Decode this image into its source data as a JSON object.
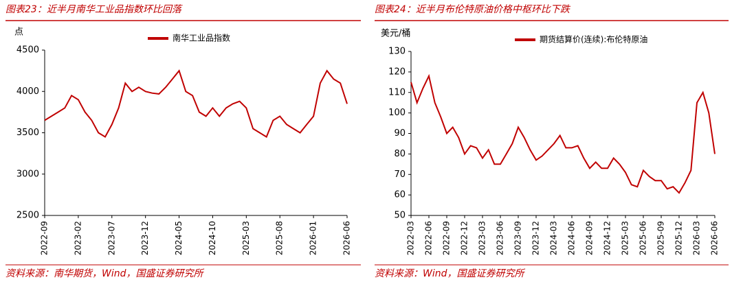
{
  "chart_data": [
    {
      "type": "line",
      "title": "图表23：近半月南华工业品指数环比回落",
      "y_unit": "点",
      "source": "资料来源：南华期货，Wind，国盛证券研究所",
      "x": [
        "2022-09",
        "2022-10",
        "2022-11",
        "2022-12",
        "2023-01",
        "2023-02",
        "2023-03",
        "2023-04",
        "2023-05",
        "2023-06",
        "2023-07",
        "2023-08",
        "2023-09",
        "2023-10",
        "2023-11",
        "2023-12",
        "2024-01",
        "2024-02",
        "2024-03",
        "2024-04",
        "2024-05",
        "2024-06",
        "2024-07",
        "2024-08",
        "2024-09",
        "2024-10",
        "2024-11",
        "2024-12",
        "2025-01",
        "2025-02",
        "2025-03",
        "2025-04",
        "2025-05",
        "2025-06",
        "2025-07",
        "2025-08",
        "2025-09",
        "2025-10",
        "2025-11",
        "2025-12",
        "2026-01",
        "2026-02",
        "2026-03",
        "2026-04",
        "2026-05",
        "2026-06"
      ],
      "xticks": [
        "2022-09",
        "2023-02",
        "2023-07",
        "2023-12",
        "2024-05",
        "2024-10",
        "2025-03",
        "2025-08",
        "2026-01",
        "2026-06"
      ],
      "series": [
        {
          "name": "南华工业品指数",
          "color": "#c00000",
          "values": [
            3650,
            3700,
            3750,
            3800,
            3950,
            3900,
            3750,
            3650,
            3500,
            3450,
            3600,
            3800,
            4100,
            4000,
            4050,
            4000,
            3980,
            3970,
            4050,
            4150,
            4250,
            4000,
            3950,
            3750,
            3700,
            3800,
            3700,
            3800,
            3850,
            3880,
            3800,
            3550,
            3500,
            3450,
            3650,
            3700,
            3600,
            3550,
            3500,
            3600,
            3700,
            4100,
            4250,
            4150,
            4100,
            3850
          ]
        }
      ],
      "ylim": [
        2500,
        4500
      ],
      "yticks": [
        2500,
        3000,
        3500,
        4000,
        4500
      ],
      "grid": false
    },
    {
      "type": "line",
      "title": "图表24：近半月布伦特原油价格中枢环比下跌",
      "y_unit": "美元/桶",
      "source": "资料来源：Wind，国盛证券研究所",
      "x": [
        "2022-03",
        "2022-04",
        "2022-05",
        "2022-06",
        "2022-07",
        "2022-08",
        "2022-09",
        "2022-10",
        "2022-11",
        "2022-12",
        "2023-01",
        "2023-02",
        "2023-03",
        "2023-04",
        "2023-05",
        "2023-06",
        "2023-07",
        "2023-08",
        "2023-09",
        "2023-10",
        "2023-11",
        "2023-12",
        "2024-01",
        "2024-02",
        "2024-03",
        "2024-04",
        "2024-05",
        "2024-06",
        "2024-07",
        "2024-08",
        "2024-09",
        "2024-10",
        "2024-11",
        "2024-12",
        "2025-01",
        "2025-02",
        "2025-03",
        "2025-04",
        "2025-05",
        "2025-06",
        "2025-07",
        "2025-08",
        "2025-09",
        "2025-10",
        "2025-11",
        "2025-12",
        "2026-01",
        "2026-02",
        "2026-03",
        "2026-04",
        "2026-05",
        "2026-06"
      ],
      "xticks": [
        "2022-03",
        "2022-06",
        "2022-09",
        "2022-12",
        "2023-03",
        "2023-06",
        "2023-09",
        "2023-12",
        "2024-03",
        "2024-06",
        "2024-09",
        "2024-12",
        "2025-03",
        "2025-06",
        "2025-09",
        "2025-12",
        "2026-03",
        "2026-06"
      ],
      "series": [
        {
          "name": "期货结算价(连续):布伦特原油",
          "color": "#c00000",
          "values": [
            115,
            105,
            112,
            118,
            105,
            98,
            90,
            93,
            88,
            80,
            84,
            83,
            78,
            82,
            75,
            75,
            80,
            85,
            93,
            88,
            82,
            77,
            79,
            82,
            85,
            89,
            83,
            83,
            84,
            78,
            73,
            76,
            73,
            73,
            78,
            75,
            71,
            65,
            64,
            72,
            69,
            67,
            67,
            63,
            64,
            61,
            66,
            72,
            105,
            110,
            100,
            80
          ]
        }
      ],
      "ylim": [
        50,
        130
      ],
      "yticks": [
        50,
        60,
        70,
        80,
        90,
        100,
        110,
        120,
        130
      ],
      "grid": false
    }
  ]
}
